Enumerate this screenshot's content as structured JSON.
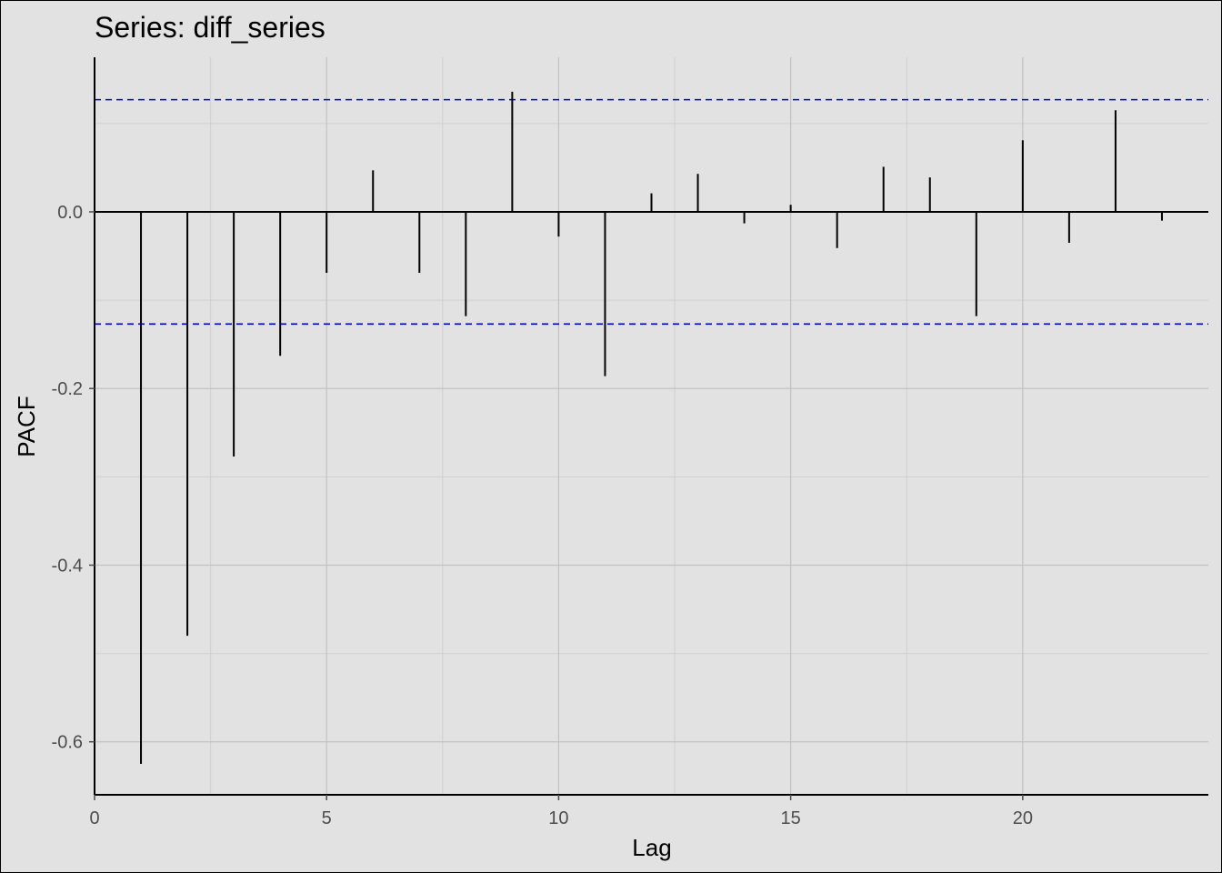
{
  "chart_data": {
    "type": "bar",
    "title": "Series: diff_series",
    "xlabel": "Lag",
    "ylabel": "PACF",
    "xlim": [
      0,
      24
    ],
    "ylim": [
      -0.66,
      0.175
    ],
    "x_ticks": [
      0,
      5,
      10,
      15,
      20
    ],
    "y_ticks": [
      -0.6,
      -0.4,
      -0.2,
      0.0
    ],
    "y_tick_labels": [
      "-0.6",
      "-0.4",
      "-0.2",
      "0.0"
    ],
    "grid": true,
    "confidence_bound": 0.127,
    "confidence_color": "#0000cc",
    "bar_color": "#000000",
    "series": [
      {
        "lags": [
          1,
          2,
          3,
          4,
          5,
          6,
          7,
          8,
          9,
          10,
          11,
          12,
          13,
          14,
          15,
          16,
          17,
          18,
          19,
          20,
          21,
          22,
          23
        ],
        "values": [
          -0.625,
          -0.48,
          -0.277,
          -0.163,
          -0.069,
          0.047,
          -0.069,
          -0.118,
          0.136,
          -0.028,
          -0.186,
          0.021,
          0.043,
          -0.013,
          0.008,
          -0.041,
          0.051,
          0.039,
          -0.118,
          0.081,
          -0.035,
          0.115,
          -0.01
        ]
      }
    ]
  }
}
